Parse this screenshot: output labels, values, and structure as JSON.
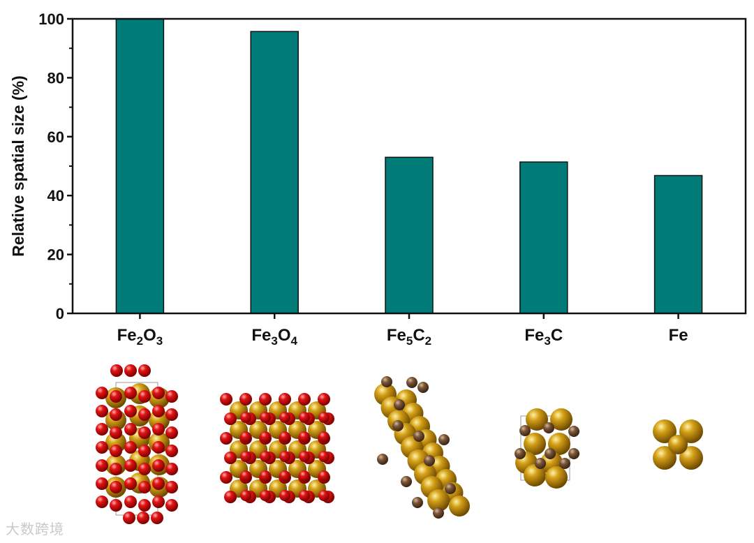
{
  "chart_data": {
    "type": "bar",
    "ylabel": "Relative spatial size (%)",
    "ylim": [
      0,
      100
    ],
    "yticks": [
      "0",
      "20",
      "40",
      "60",
      "80",
      "100"
    ],
    "categories": [
      {
        "base": "Fe",
        "parts": [
          [
            "Fe",
            ""
          ],
          [
            "2",
            "sub"
          ],
          [
            "O",
            ""
          ],
          [
            "3",
            "sub"
          ]
        ]
      },
      {
        "base": "Fe",
        "parts": [
          [
            "Fe",
            ""
          ],
          [
            "3",
            "sub"
          ],
          [
            "O",
            ""
          ],
          [
            "4",
            "sub"
          ]
        ]
      },
      {
        "base": "Fe",
        "parts": [
          [
            "Fe",
            ""
          ],
          [
            "5",
            "sub"
          ],
          [
            "C",
            ""
          ],
          [
            "2",
            "sub"
          ]
        ]
      },
      {
        "base": "Fe",
        "parts": [
          [
            "Fe",
            ""
          ],
          [
            "3",
            "sub"
          ],
          [
            "C",
            ""
          ]
        ]
      },
      {
        "base": "Fe",
        "parts": [
          [
            "Fe",
            ""
          ]
        ]
      }
    ],
    "category_labels": [
      "Fe2O3",
      "Fe3O4",
      "Fe5C2",
      "Fe3C",
      "Fe"
    ],
    "values": [
      100,
      95.7,
      53,
      51.4,
      46.8
    ],
    "bar_color": "#007b77",
    "grid": false,
    "legend": "none"
  },
  "structures": [
    {
      "name": "Fe2O3",
      "type": "fe2o3"
    },
    {
      "name": "Fe3O4",
      "type": "fe3o4"
    },
    {
      "name": "Fe5C2",
      "type": "fe5c2"
    },
    {
      "name": "Fe3C",
      "type": "fe3c"
    },
    {
      "name": "Fe",
      "type": "fe"
    }
  ],
  "colors": {
    "iron": "#b8860b",
    "oxygen": "#e01010",
    "carbon": "#6b4a32"
  },
  "watermark": "大数跨境"
}
